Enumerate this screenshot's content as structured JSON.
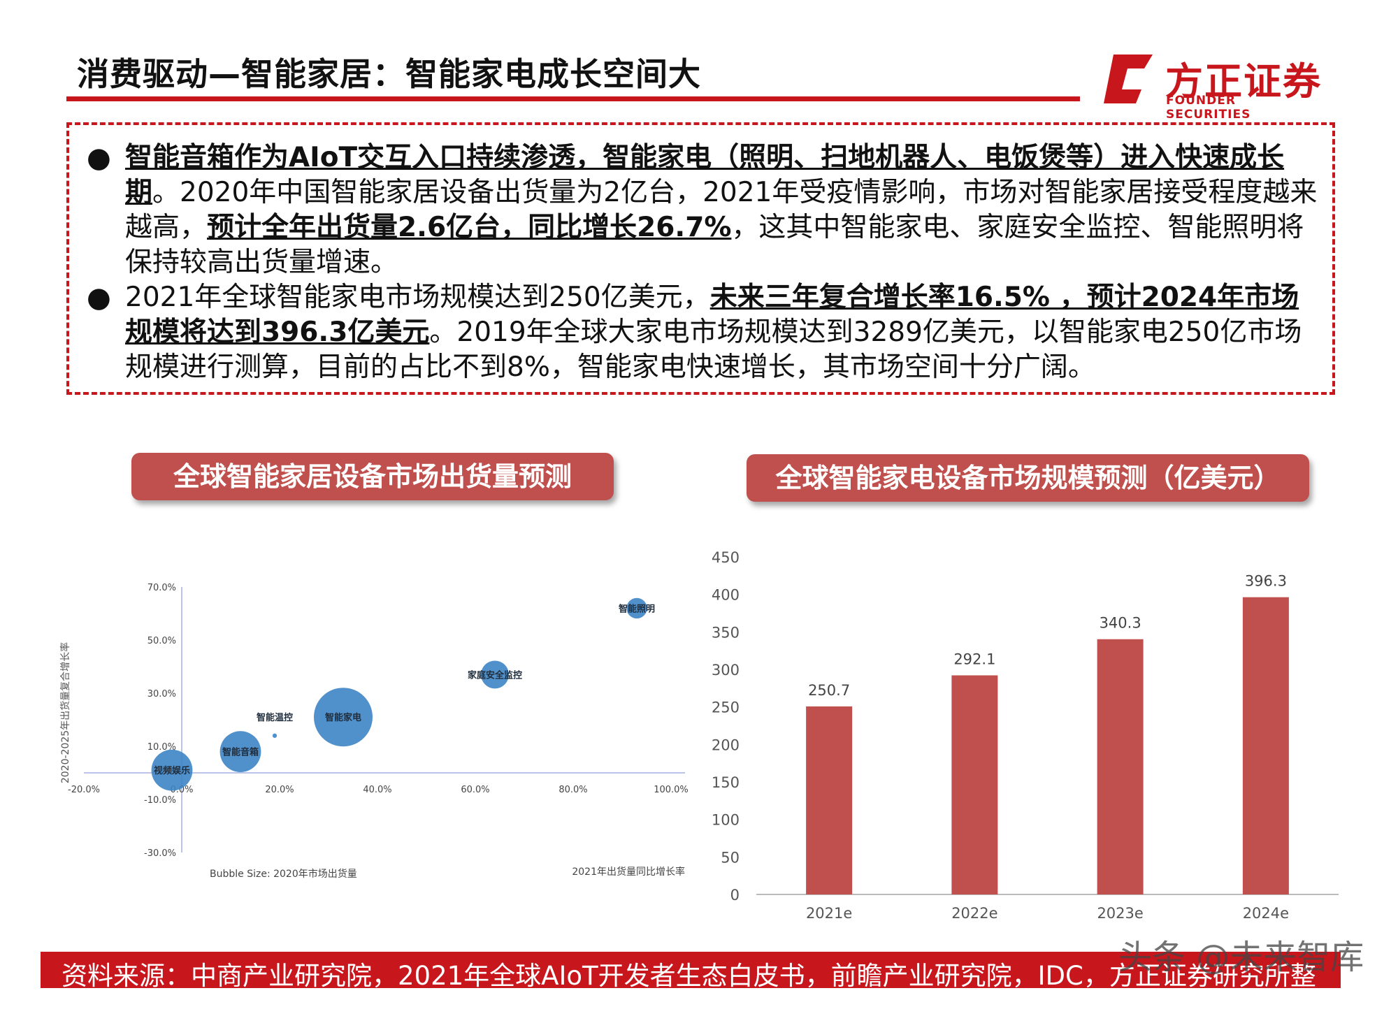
{
  "header": {
    "title": "消费驱动—智能家居：智能家电成长空间大",
    "logo_cn": "方正证券",
    "logo_en": "FOUNDER SECURITIES"
  },
  "bullets": [
    {
      "bold": "智能音箱作为AIoT交互入口持续渗透，智能家电（照明、扫地机器人、电饭煲等）进入快速成长期",
      "text1": "。2020年中国智能家居设备出货量为2亿台，2021年受疫情影响，市场对智能家居接受程度越来越高，",
      "bold2": "预计全年出货量2.6亿台，同比增长26.7%",
      "text2": "，这其中智能家电、家庭安全监控、智能照明将保持较高出货量增速。"
    },
    {
      "text0": "2021年全球智能家电市场规模达到250亿美元，",
      "bold": "未来三年复合增长率16.5% ，预计2024年市场规模将达到396.3亿美元",
      "text1": "。2019年全球大家电市场规模达到3289亿美元，以智能家电250亿市场规模进行测算，目前的占比不到8%，智能家电快速增长，其市场空间十分广阔。"
    }
  ],
  "left_panel_title": "全球智能家居设备市场出货量预测",
  "right_panel_title": "全球智能家电设备市场规模预测（亿美元）",
  "chart_data": [
    {
      "type": "scatter",
      "bubble": true,
      "title": "",
      "xlabel": "2021年出货量同比增长率",
      "ylabel": "2020-2025年出货量复合增长率",
      "size_label": "Bubble Size: 2020年市场出货量",
      "xlim": [
        -20,
        100
      ],
      "ylim": [
        -30,
        70
      ],
      "x_ticks": [
        "-20.0%",
        "0.0%",
        "20.0%",
        "40.0%",
        "60.0%",
        "80.0%",
        "100.0%"
      ],
      "y_ticks": [
        "70.0%",
        "50.0%",
        "30.0%",
        "10.0%",
        "-10.0%",
        "-30.0%"
      ],
      "points": [
        {
          "label": "视频娱乐",
          "x": -2,
          "y": 1,
          "size": 28
        },
        {
          "label": "智能音箱",
          "x": 12,
          "y": 8,
          "size": 28
        },
        {
          "label": "智能温控",
          "x": 19,
          "y": 14,
          "size": 3
        },
        {
          "label": "智能家电",
          "x": 33,
          "y": 21,
          "size": 40
        },
        {
          "label": "家庭安全监控",
          "x": 64,
          "y": 37,
          "size": 19
        },
        {
          "label": "智能照明",
          "x": 93,
          "y": 62,
          "size": 14
        }
      ],
      "color": "#3d85c6"
    },
    {
      "type": "bar",
      "title": "",
      "categories": [
        "2021e",
        "2022e",
        "2023e",
        "2024e"
      ],
      "values": [
        250.7,
        292.1,
        340.3,
        396.3
      ],
      "value_labels": [
        "250.7",
        "292.1",
        "340.3",
        "396.3"
      ],
      "ylim": [
        0,
        450
      ],
      "y_ticks": [
        "450",
        "400",
        "350",
        "300",
        "250",
        "200",
        "150",
        "100",
        "50",
        "0"
      ],
      "color": "#c0504d"
    }
  ],
  "footer": {
    "source": "资料来源：中商产业研究院，2021年全球AIoT开发者生态白皮书，前瞻产业研究院，IDC，方正证券研究所整理",
    "watermark": "头条 @未来智库"
  }
}
